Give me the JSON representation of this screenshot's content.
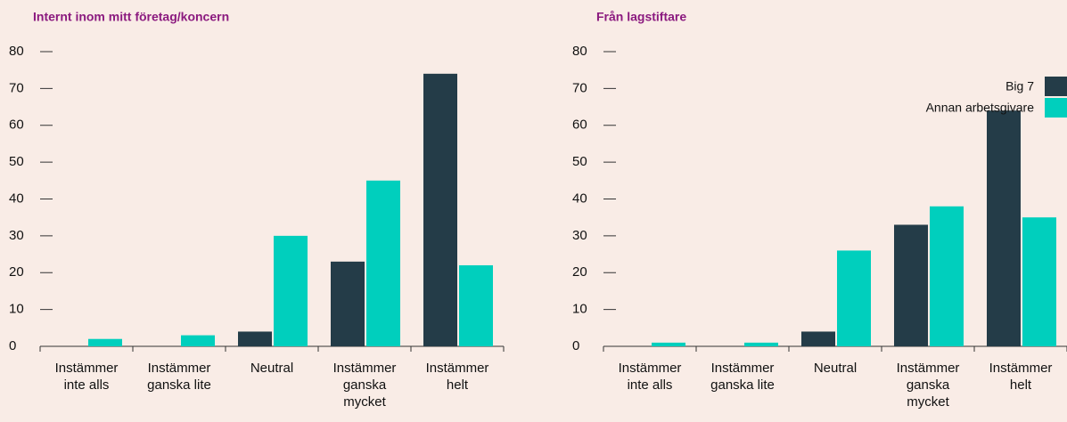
{
  "chart_data": [
    {
      "type": "bar",
      "title": "Internt inom mitt företag/koncern",
      "categories": [
        "Instämmer\ninte alls",
        "Instämmer\nganska lite",
        "Neutral",
        "Instämmer\nganska\nmycket",
        "Instämmer\nhelt"
      ],
      "series": [
        {
          "color": "#243c48",
          "values": [
            0,
            0,
            4,
            23,
            74
          ]
        },
        {
          "color": "#00cfbd",
          "values": [
            2,
            3,
            30,
            45,
            22
          ]
        }
      ],
      "ylim": [
        0,
        80
      ],
      "yticks": [
        0,
        10,
        20,
        30,
        40,
        50,
        60,
        70,
        80
      ]
    },
    {
      "type": "bar",
      "title": "Från lagstiftare",
      "categories": [
        "Instämmer\ninte alls",
        "Instämmer\nganska lite",
        "Neutral",
        "Instämmer\nganska\nmycket",
        "Instämmer\nhelt"
      ],
      "series": [
        {
          "name": "Big 7",
          "color": "#243c48",
          "values": [
            0,
            0,
            4,
            33,
            64
          ]
        },
        {
          "name": "Annan arbetsgivare",
          "color": "#00cfbd",
          "values": [
            1,
            1,
            26,
            38,
            35
          ]
        }
      ],
      "ylim": [
        0,
        80
      ],
      "yticks": [
        0,
        10,
        20,
        30,
        40,
        50,
        60,
        70,
        80
      ],
      "legend": "top-right"
    }
  ]
}
